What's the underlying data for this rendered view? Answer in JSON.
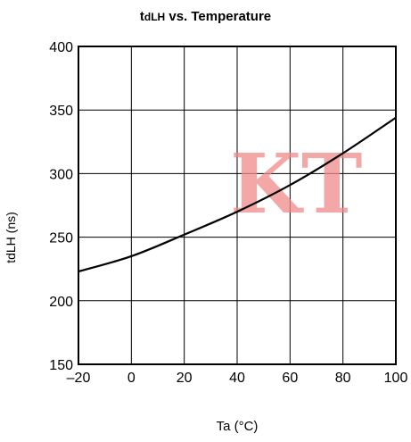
{
  "chart_data": {
    "type": "line",
    "title_prefix": "t",
    "title_sub": "dLH",
    "title_rest": " vs. Temperature",
    "ylabel": "tdLH (ns)",
    "xlabel": "Ta (°C)",
    "xlim": [
      -20,
      100
    ],
    "ylim": [
      150,
      400
    ],
    "xticks": [
      "–20",
      "0",
      "20",
      "40",
      "60",
      "80",
      "100"
    ],
    "xtick_values": [
      -20,
      0,
      20,
      40,
      60,
      80,
      100
    ],
    "yticks": [
      150,
      200,
      250,
      300,
      350,
      400
    ],
    "grid": true,
    "series": [
      {
        "color": "#000000",
        "x": [
          -20,
          0,
          20,
          40,
          60,
          80,
          100
        ],
        "y": [
          223,
          235,
          252,
          270,
          291,
          316,
          344
        ]
      }
    ],
    "watermark": "KT",
    "watermark_color": "#f08a8a"
  }
}
